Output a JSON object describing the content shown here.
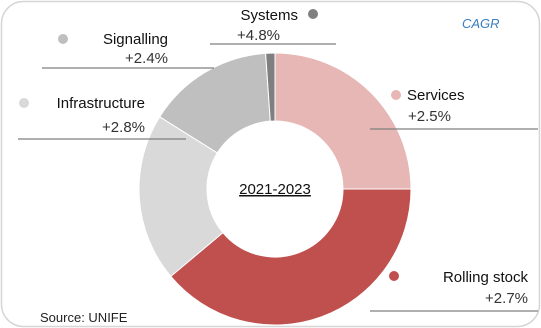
{
  "chart_data": {
    "type": "pie",
    "donut": true,
    "center_label": "2021-2023",
    "legend_title": "CAGR",
    "source": "Source: UNIFE",
    "slices": [
      {
        "name": "Services",
        "share": 0.25,
        "cagr": "+2.5%",
        "color": "#e6b7b5"
      },
      {
        "name": "Rolling stock",
        "share": 0.389,
        "cagr": "+2.7%",
        "color": "#c0504d"
      },
      {
        "name": "Infrastructure",
        "share": 0.2,
        "cagr": "+2.8%",
        "color": "#d9d9d9"
      },
      {
        "name": "Signalling",
        "share": 0.15,
        "cagr": "+2.4%",
        "color": "#bfbfbf"
      },
      {
        "name": "Systems",
        "share": 0.011,
        "cagr": "+4.8%",
        "color": "#7f7f7f"
      }
    ]
  }
}
